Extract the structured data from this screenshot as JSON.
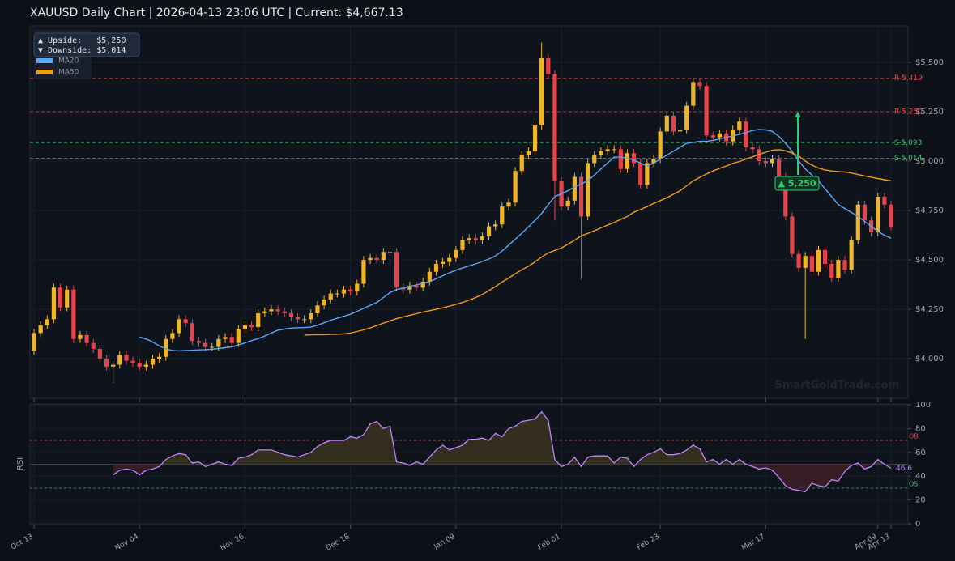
{
  "chart_data": [
    {
      "type": "candlestick",
      "title": "XAUUSD  Daily Chart  |  2026-04-13 23:06 UTC  |  Current: $4,667.13",
      "categories": [
        "Oct 13",
        null,
        null,
        null,
        null,
        null,
        null,
        null,
        null,
        null,
        null,
        null,
        null,
        null,
        null,
        null,
        "Nov 04",
        null,
        null,
        null,
        null,
        null,
        null,
        null,
        null,
        null,
        null,
        null,
        null,
        null,
        null,
        null,
        "Nov 26",
        null,
        null,
        null,
        null,
        null,
        null,
        null,
        null,
        null,
        null,
        null,
        null,
        null,
        null,
        null,
        "Dec 18",
        null,
        null,
        null,
        null,
        null,
        null,
        null,
        null,
        null,
        null,
        null,
        null,
        null,
        null,
        null,
        "Jan 09",
        null,
        null,
        null,
        null,
        null,
        null,
        null,
        null,
        null,
        null,
        null,
        null,
        null,
        null,
        null,
        "Feb 01",
        null,
        null,
        null,
        null,
        null,
        null,
        null,
        null,
        null,
        null,
        null,
        null,
        null,
        null,
        "Feb 23",
        null,
        null,
        null,
        null,
        null,
        null,
        null,
        null,
        null,
        null,
        null,
        null,
        null,
        null,
        null,
        "Mar 17",
        null,
        null,
        null,
        null,
        null,
        null,
        null,
        null,
        null,
        null,
        null,
        null,
        null,
        null,
        null,
        null,
        "Apr 09",
        null,
        "Apr 13"
      ],
      "open": [
        4040,
        4130,
        4170,
        4200,
        4360,
        4260,
        4350,
        4100,
        4120,
        4080,
        4050,
        4000,
        3960,
        3970,
        4020,
        3990,
        3980,
        3960,
        3970,
        4000,
        4010,
        4100,
        4130,
        4200,
        4180,
        4090,
        4080,
        4060,
        4060,
        4100,
        4110,
        4080,
        4150,
        4170,
        4160,
        4230,
        4240,
        4250,
        4240,
        4230,
        4210,
        4200,
        4200,
        4230,
        4270,
        4300,
        4330,
        4330,
        4350,
        4340,
        4380,
        4500,
        4510,
        4500,
        4540,
        4540,
        4360,
        4350,
        4370,
        4360,
        4390,
        4440,
        4480,
        4490,
        4510,
        4550,
        4600,
        4610,
        4600,
        4620,
        4670,
        4680,
        4770,
        4790,
        4950,
        5030,
        5050,
        5180,
        5520,
        5440,
        4900,
        4770,
        4800,
        4920,
        4720,
        4990,
        5030,
        5050,
        5060,
        5060,
        4960,
        5040,
        4990,
        4880,
        4990,
        5010,
        5150,
        5230,
        5150,
        5160,
        5280,
        5400,
        5380,
        5130,
        5120,
        5140,
        5100,
        5160,
        5200,
        5070,
        5060,
        5000,
        4990,
        5010,
        4920,
        4720,
        4530,
        4460,
        4520,
        4440,
        4550,
        4480,
        4410,
        4500,
        4450,
        4600,
        4780,
        4700,
        4640,
        4820,
        4780
      ],
      "high": [
        4150,
        4190,
        4220,
        4380,
        4380,
        4370,
        4370,
        4140,
        4140,
        4100,
        4070,
        4020,
        3990,
        4040,
        4040,
        4010,
        4000,
        3990,
        4020,
        4030,
        4120,
        4150,
        4220,
        4220,
        4200,
        4110,
        4100,
        4080,
        4120,
        4130,
        4130,
        4170,
        4190,
        4190,
        4250,
        4260,
        4270,
        4270,
        4260,
        4250,
        4230,
        4220,
        4250,
        4290,
        4320,
        4350,
        4350,
        4370,
        4370,
        4400,
        4520,
        4530,
        4530,
        4560,
        4560,
        4560,
        4380,
        4390,
        4390,
        4410,
        4460,
        4500,
        4510,
        4530,
        4570,
        4620,
        4630,
        4630,
        4640,
        4690,
        4700,
        4790,
        4810,
        4970,
        5050,
        5070,
        5200,
        5600,
        5540,
        5460,
        4920,
        4820,
        4940,
        4940,
        5010,
        5050,
        5070,
        5080,
        5080,
        5080,
        5060,
        5060,
        5010,
        5010,
        5030,
        5170,
        5250,
        5250,
        5180,
        5300,
        5420,
        5420,
        5400,
        5150,
        5160,
        5160,
        5180,
        5220,
        5220,
        5090,
        5080,
        5020,
        5030,
        5030,
        4940,
        4740,
        4550,
        4540,
        4540,
        4570,
        4570,
        4500,
        4520,
        4520,
        4620,
        4800,
        4800,
        4720,
        4840,
        4840,
        4800
      ],
      "low": [
        4020,
        4110,
        4150,
        4180,
        4240,
        4240,
        4080,
        4080,
        4060,
        4030,
        3980,
        3940,
        3880,
        3950,
        3970,
        3960,
        3940,
        3940,
        3950,
        3980,
        3990,
        4080,
        4110,
        4160,
        4070,
        4060,
        4040,
        4040,
        4040,
        4080,
        4060,
        4060,
        4130,
        4140,
        4140,
        4210,
        4220,
        4220,
        4210,
        4190,
        4180,
        4180,
        4180,
        4210,
        4250,
        4280,
        4310,
        4310,
        4320,
        4320,
        4360,
        4480,
        4480,
        4480,
        4520,
        4340,
        4330,
        4330,
        4340,
        4340,
        4370,
        4420,
        4460,
        4470,
        4490,
        4530,
        4580,
        4580,
        4580,
        4600,
        4650,
        4660,
        4750,
        4770,
        4930,
        5010,
        5030,
        5160,
        5420,
        4700,
        4750,
        4750,
        4780,
        4400,
        4700,
        4970,
        5010,
        5030,
        5040,
        4940,
        4940,
        4970,
        4860,
        4860,
        4970,
        4990,
        5130,
        5130,
        5130,
        5140,
        5260,
        5360,
        5110,
        5100,
        5100,
        5080,
        5080,
        5140,
        5050,
        5040,
        4980,
        4970,
        4970,
        4900,
        4700,
        4510,
        4440,
        4100,
        4420,
        4420,
        4460,
        4390,
        4390,
        4430,
        4430,
        4580,
        4680,
        4620,
        4620,
        4760,
        4650
      ],
      "close": [
        4130,
        4170,
        4200,
        4360,
        4260,
        4350,
        4100,
        4120,
        4080,
        4050,
        4000,
        3960,
        3970,
        4020,
        3990,
        3980,
        3960,
        3970,
        4000,
        4010,
        4100,
        4130,
        4200,
        4180,
        4090,
        4080,
        4060,
        4060,
        4100,
        4110,
        4080,
        4150,
        4170,
        4160,
        4230,
        4240,
        4250,
        4240,
        4230,
        4210,
        4200,
        4200,
        4230,
        4270,
        4300,
        4330,
        4330,
        4350,
        4340,
        4380,
        4500,
        4510,
        4500,
        4540,
        4540,
        4360,
        4350,
        4370,
        4360,
        4390,
        4440,
        4480,
        4490,
        4510,
        4550,
        4600,
        4610,
        4600,
        4620,
        4670,
        4680,
        4770,
        4790,
        4950,
        5030,
        5050,
        5180,
        5520,
        5440,
        4900,
        4770,
        4800,
        4920,
        4720,
        4990,
        5030,
        5050,
        5060,
        5060,
        4960,
        5040,
        4990,
        4880,
        4990,
        5010,
        5150,
        5230,
        5150,
        5160,
        5280,
        5400,
        5380,
        5130,
        5120,
        5140,
        5100,
        5160,
        5200,
        5070,
        5060,
        5000,
        4990,
        5010,
        4920,
        4720,
        4530,
        4460,
        4520,
        4440,
        4550,
        4480,
        4410,
        4500,
        4450,
        4600,
        4780,
        4700,
        4640,
        4820,
        4780,
        4667.13
      ],
      "up_color": "#f0b429",
      "down_color": "#e8434a",
      "series": [
        {
          "name": "MA20",
          "color": "#5aa7f5",
          "values": [
            null,
            null,
            null,
            null,
            null,
            null,
            null,
            null,
            null,
            null,
            null,
            null,
            null,
            null,
            null,
            null,
            4110,
            4100,
            4085,
            4065,
            4050,
            4042,
            4040,
            4042,
            4043,
            4045,
            4046,
            4048,
            4052,
            4056,
            4060,
            4070,
            4080,
            4092,
            4102,
            4115,
            4130,
            4145,
            4150,
            4155,
            4157,
            4158,
            4160,
            4170,
            4182,
            4195,
            4205,
            4215,
            4225,
            4240,
            4255,
            4270,
            4285,
            4310,
            4335,
            4350,
            4358,
            4366,
            4374,
            4382,
            4390,
            4405,
            4420,
            4435,
            4448,
            4460,
            4470,
            4480,
            4492,
            4505,
            4520,
            4545,
            4575,
            4605,
            4635,
            4668,
            4700,
            4735,
            4780,
            4820,
            4835,
            4850,
            4870,
            4885,
            4900,
            4930,
            4960,
            4990,
            5020,
            5020,
            5015,
            5005,
            4990,
            4975,
            4990,
            5010,
            5030,
            5050,
            5070,
            5090,
            5095,
            5100,
            5100,
            5105,
            5112,
            5120,
            5127,
            5135,
            5145,
            5155,
            5160,
            5158,
            5150,
            5125,
            5090,
            5050,
            5000,
            4960,
            4930,
            4900,
            4860,
            4820,
            4780,
            4760,
            4740,
            4720,
            4695,
            4670,
            4645,
            4625,
            4610
          ]
        },
        {
          "name": "MA50",
          "color": "#f39c12",
          "values": [
            null,
            null,
            null,
            null,
            null,
            null,
            null,
            null,
            null,
            null,
            null,
            null,
            null,
            null,
            null,
            null,
            null,
            null,
            null,
            null,
            null,
            null,
            null,
            null,
            null,
            null,
            null,
            null,
            null,
            null,
            null,
            null,
            null,
            null,
            null,
            null,
            null,
            null,
            null,
            null,
            null,
            4120,
            4121,
            4122,
            4122,
            4123,
            4124,
            4126,
            4130,
            4138,
            4146,
            4156,
            4168,
            4180,
            4192,
            4203,
            4212,
            4220,
            4228,
            4236,
            4243,
            4250,
            4258,
            4266,
            4275,
            4285,
            4297,
            4310,
            4325,
            4345,
            4365,
            4388,
            4408,
            4430,
            4450,
            4468,
            4490,
            4515,
            4535,
            4548,
            4560,
            4580,
            4600,
            4622,
            4634,
            4648,
            4662,
            4676,
            4690,
            4705,
            4720,
            4742,
            4755,
            4770,
            4786,
            4800,
            4815,
            4832,
            4850,
            4875,
            4900,
            4918,
            4935,
            4950,
            4963,
            4975,
            4988,
            4998,
            5010,
            5022,
            5034,
            5045,
            5055,
            5058,
            5052,
            5040,
            5025,
            5000,
            4980,
            4965,
            4955,
            4950,
            4947,
            4945,
            4940,
            4932,
            4925,
            4918,
            4912,
            4906,
            4900
          ]
        }
      ],
      "ylim": [
        3800,
        5684
      ],
      "yticks": [
        {
          "value": 4000,
          "label": "$4,000"
        },
        {
          "value": 4250,
          "label": "$4,250"
        },
        {
          "value": 4500,
          "label": "$4,500"
        },
        {
          "value": 4750,
          "label": "$4,750"
        },
        {
          "value": 5000,
          "label": "$5,000"
        },
        {
          "value": 5250,
          "label": "$5,250"
        },
        {
          "value": 5500,
          "label": "$5,500"
        }
      ],
      "levels": [
        {
          "label": "R 5,419",
          "value": 5419,
          "color": "#e8434a"
        },
        {
          "label": "R 5,250",
          "value": 5250,
          "color": "#e8434a"
        },
        {
          "label": "S 5,093",
          "value": 5093,
          "color": "#2ecc71"
        },
        {
          "label": "S 5,014",
          "value": 5014,
          "color": "#2ecc71"
        }
      ],
      "info_box": [
        "▲ Upside:   $5,250",
        "▼ Downside: $5,014"
      ],
      "annotation": {
        "label": "▲ 5,250",
        "value": 5250,
        "color": "#2ecc71"
      },
      "watermark": "SmartGoldTrade.com",
      "grid": true,
      "legend": "upper left"
    },
    {
      "type": "line",
      "ylabel": "RSI",
      "series": [
        {
          "color": "#c084fc",
          "values": [
            null,
            null,
            null,
            null,
            null,
            null,
            null,
            null,
            null,
            null,
            null,
            null,
            41,
            45,
            46,
            45,
            41,
            45,
            46,
            48,
            54,
            57,
            59,
            58,
            51,
            52,
            48,
            50,
            52,
            50,
            49,
            55,
            56,
            58,
            62,
            62,
            62,
            60,
            58,
            57,
            56,
            58,
            60,
            65,
            68,
            70,
            70,
            70,
            73,
            72,
            75,
            84,
            86,
            80,
            82,
            52,
            51,
            49,
            52,
            50,
            56,
            62,
            66,
            62,
            64,
            66,
            71,
            71,
            72,
            70,
            76,
            73,
            80,
            82,
            86,
            87,
            88,
            94,
            87,
            54,
            48,
            50,
            56,
            48,
            56,
            57,
            57,
            57,
            51,
            56,
            55,
            48,
            54,
            58,
            60,
            63,
            58,
            58,
            59,
            62,
            66,
            63,
            52,
            54,
            50,
            54,
            50,
            54,
            50,
            48,
            46,
            47,
            45,
            39,
            32,
            29,
            28,
            27,
            34,
            32,
            31,
            37,
            36,
            44,
            49,
            51,
            46,
            48,
            54,
            50,
            46.6
          ]
        }
      ],
      "fill_above": "#3b3420",
      "fill_below": "#3d1f25",
      "midline": 50,
      "levels": [
        {
          "label": "OB",
          "value": 70,
          "color": "#e8434a"
        },
        {
          "label": "OS",
          "value": 30,
          "color": "#2ecc71"
        }
      ],
      "ylim": [
        0,
        100
      ],
      "yticks": [
        0,
        20,
        40,
        60,
        80,
        100
      ],
      "grid": true
    }
  ]
}
